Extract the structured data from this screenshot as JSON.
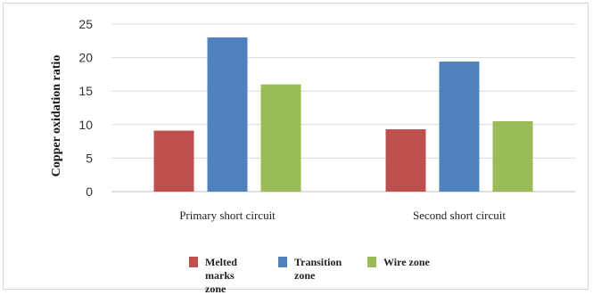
{
  "chart_data": {
    "type": "bar",
    "title": "",
    "xlabel": "",
    "ylabel": "Copper oxidation ratio",
    "ylim": [
      0,
      25
    ],
    "yticks": [
      0,
      5,
      10,
      15,
      20,
      25
    ],
    "categories": [
      "Primary short circuit",
      "Second short circuit"
    ],
    "series": [
      {
        "name": "Melted marks zone",
        "legend_lines": [
          "Melted",
          "marks",
          "zone"
        ],
        "color": "#c0504d",
        "values": [
          9.1,
          9.3
        ]
      },
      {
        "name": "Transition zone",
        "legend_lines": [
          "Transition",
          "zone"
        ],
        "color": "#4f81bd",
        "values": [
          23.0,
          19.4
        ]
      },
      {
        "name": "Wire zone",
        "legend_lines": [
          "Wire zone"
        ],
        "color": "#9bbb59",
        "values": [
          16.0,
          10.5
        ]
      }
    ],
    "grid": true,
    "legend": "bottom"
  }
}
